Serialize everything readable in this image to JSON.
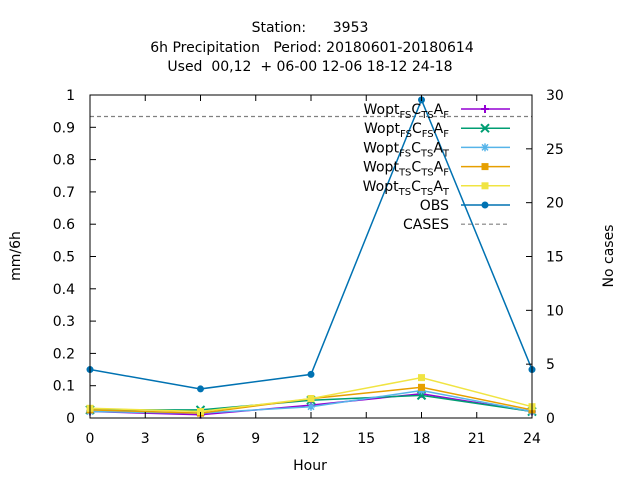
{
  "chart_data": {
    "type": "line",
    "title": {
      "line1": "Station:      3953",
      "line2": "6h Precipitation   Period: 20180601-20180614",
      "line3": "Used  00,12  + 06-00 12-06 18-12 24-18"
    },
    "xlabel": "Hour",
    "ylabel": "mm/6h",
    "y2label": "No cases",
    "xlim": [
      0,
      24
    ],
    "ylim": [
      0,
      1
    ],
    "y2lim": [
      0,
      30
    ],
    "x_ticks": [
      "0",
      "3",
      "6",
      "9",
      "12",
      "15",
      "18",
      "21",
      "24"
    ],
    "y_ticks": [
      "0",
      "0.1",
      "0.2",
      "0.3",
      "0.4",
      "0.5",
      "0.6",
      "0.7",
      "0.8",
      "0.9",
      "1"
    ],
    "y2_ticks": [
      "0",
      "5",
      "10",
      "15",
      "20",
      "25",
      "30"
    ],
    "grid": false,
    "legend_position": "top-right",
    "x": [
      0,
      6,
      12,
      18,
      24
    ],
    "series": [
      {
        "base": "Wopt",
        "parts": [
          [
            "FS",
            "sub"
          ],
          [
            "C",
            "n"
          ],
          [
            "TS",
            "sub"
          ],
          [
            "A",
            "n"
          ],
          [
            "F",
            "sub"
          ]
        ],
        "color": "#9400d3",
        "marker": "plus",
        "values": [
          0.02,
          0.01,
          0.04,
          0.075,
          0.02
        ]
      },
      {
        "base": "Wopt",
        "parts": [
          [
            "FS",
            "sub"
          ],
          [
            "C",
            "n"
          ],
          [
            "FS",
            "sub"
          ],
          [
            "A",
            "n"
          ],
          [
            "F",
            "sub"
          ]
        ],
        "color": "#009e73",
        "marker": "cross",
        "values": [
          0.025,
          0.025,
          0.055,
          0.07,
          0.02
        ]
      },
      {
        "base": "Wopt",
        "parts": [
          [
            "FS",
            "sub"
          ],
          [
            "C",
            "n"
          ],
          [
            "TS",
            "sub"
          ],
          [
            "A",
            "n"
          ],
          [
            "T",
            "sub"
          ]
        ],
        "color": "#56b4e9",
        "marker": "star",
        "values": [
          0.02,
          0.015,
          0.035,
          0.085,
          0.02
        ]
      },
      {
        "base": "Wopt",
        "parts": [
          [
            "TS",
            "sub"
          ],
          [
            "C",
            "n"
          ],
          [
            "TS",
            "sub"
          ],
          [
            "A",
            "n"
          ],
          [
            "F",
            "sub"
          ]
        ],
        "color": "#e69f00",
        "marker": "square",
        "values": [
          0.025,
          0.015,
          0.06,
          0.095,
          0.025
        ]
      },
      {
        "base": "Wopt",
        "parts": [
          [
            "TS",
            "sub"
          ],
          [
            "C",
            "n"
          ],
          [
            "TS",
            "sub"
          ],
          [
            "A",
            "n"
          ],
          [
            "T",
            "sub"
          ]
        ],
        "color": "#f0e442",
        "marker": "square",
        "values": [
          0.03,
          0.02,
          0.06,
          0.125,
          0.035
        ]
      },
      {
        "name": "OBS",
        "color": "#0072b2",
        "marker": "circle",
        "values": [
          0.15,
          0.09,
          0.135,
          0.985,
          0.15
        ]
      }
    ],
    "cases": {
      "name": "CASES",
      "color": "#808080",
      "axis": "right",
      "value": 28
    }
  }
}
